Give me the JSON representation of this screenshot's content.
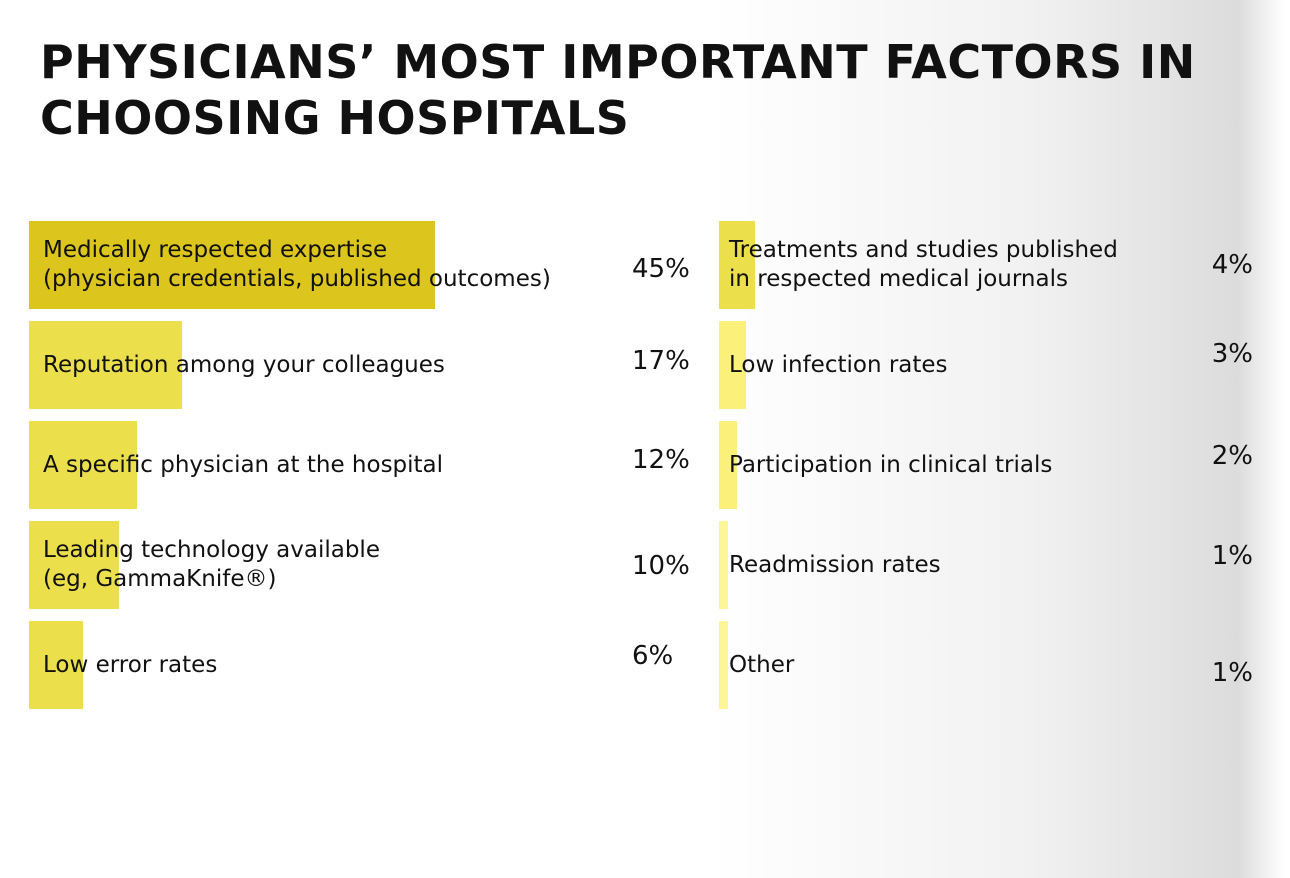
{
  "chart_data": {
    "type": "bar",
    "orientation": "horizontal",
    "title": "PHYSICIANS’ MOST IMPORTANT FACTORS IN CHOOSING HOSPITALS",
    "xlim": [
      0,
      45
    ],
    "unit": "%",
    "categories": [
      "Medically respected expertise\n(physician credentials, published outcomes)",
      "Reputation among your colleagues",
      "A specific physician at the hospital",
      "Leading technology available\n(eg, GammaKnife®)",
      "Low error rates",
      "Treatments and studies published\nin respected medical journals",
      "Low infection rates",
      "Participation in clinical trials",
      "Readmission rates",
      "Other"
    ],
    "values": [
      45,
      17,
      12,
      10,
      6,
      4,
      3,
      2,
      1,
      1
    ],
    "value_labels": [
      "45%",
      "17%",
      "12%",
      "10%",
      "6%",
      "4%",
      "3%",
      "2%",
      "1%",
      "1%"
    ],
    "bar_colors": [
      "#dcc61e",
      "#ebdf4c",
      "#ebdf4c",
      "#ebdf4c",
      "#ebdf4c",
      "#ebdf4c",
      "#fbf07a",
      "#fbf07a",
      "#fdf698",
      "#fdf698"
    ],
    "grid": false,
    "legend": "none"
  }
}
